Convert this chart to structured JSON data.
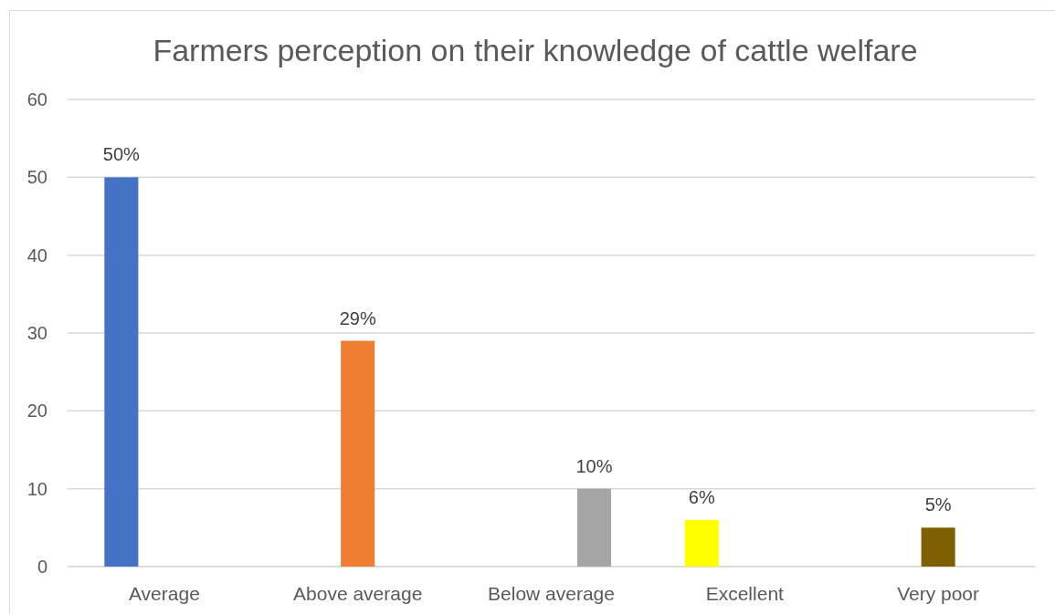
{
  "chart_data": {
    "type": "bar",
    "title": "Farmers perception on their knowledge of cattle welfare",
    "categories": [
      "Average",
      "Above average",
      "Below average",
      "Excellent",
      "Very poor"
    ],
    "series": [
      {
        "colors": [
          "#4472c4",
          null,
          null,
          "#ffff00",
          null
        ],
        "values": [
          50,
          null,
          null,
          6,
          null
        ],
        "value_labels": [
          "50%",
          null,
          null,
          "6%",
          null
        ]
      },
      {
        "colors": [
          null,
          "#ed7d31",
          null,
          null,
          "#7f6000"
        ],
        "values": [
          null,
          29,
          null,
          null,
          5
        ],
        "value_labels": [
          null,
          "29%",
          null,
          null,
          "5%"
        ]
      },
      {
        "colors": [
          null,
          null,
          "#a5a5a5",
          null,
          null
        ],
        "values": [
          null,
          null,
          10,
          null,
          null
        ],
        "value_labels": [
          null,
          null,
          "10%",
          null,
          null
        ]
      }
    ],
    "ylim": [
      0,
      60
    ],
    "yticks": [
      0,
      10,
      20,
      30,
      40,
      50,
      60
    ],
    "grid": "y"
  }
}
